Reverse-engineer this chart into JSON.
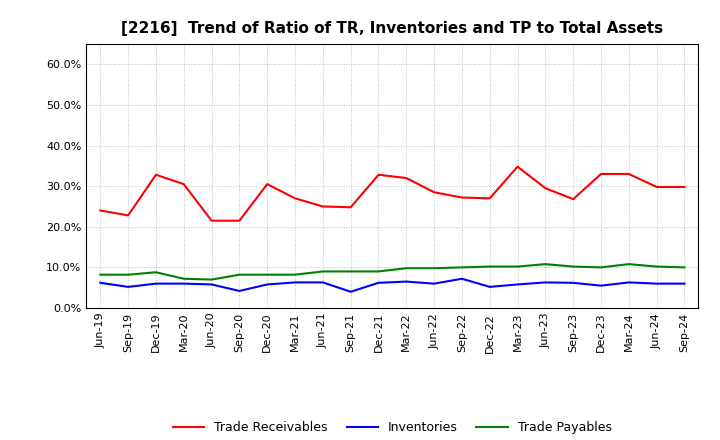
{
  "title": "[2216]  Trend of Ratio of TR, Inventories and TP to Total Assets",
  "x_labels": [
    "Jun-19",
    "Sep-19",
    "Dec-19",
    "Mar-20",
    "Jun-20",
    "Sep-20",
    "Dec-20",
    "Mar-21",
    "Jun-21",
    "Sep-21",
    "Dec-21",
    "Mar-22",
    "Jun-22",
    "Sep-22",
    "Dec-22",
    "Mar-23",
    "Jun-23",
    "Sep-23",
    "Dec-23",
    "Mar-24",
    "Jun-24",
    "Sep-24"
  ],
  "trade_receivables": [
    0.24,
    0.228,
    0.328,
    0.305,
    0.215,
    0.215,
    0.305,
    0.27,
    0.25,
    0.248,
    0.328,
    0.32,
    0.285,
    0.272,
    0.27,
    0.348,
    0.295,
    0.268,
    0.33,
    0.33,
    0.298,
    0.298
  ],
  "inventories": [
    0.062,
    0.052,
    0.06,
    0.06,
    0.058,
    0.042,
    0.058,
    0.063,
    0.063,
    0.04,
    0.062,
    0.065,
    0.06,
    0.072,
    0.052,
    0.058,
    0.063,
    0.062,
    0.055,
    0.063,
    0.06,
    0.06
  ],
  "trade_payables": [
    0.082,
    0.082,
    0.088,
    0.072,
    0.07,
    0.082,
    0.082,
    0.082,
    0.09,
    0.09,
    0.09,
    0.098,
    0.098,
    0.1,
    0.102,
    0.102,
    0.108,
    0.102,
    0.1,
    0.108,
    0.102,
    0.1
  ],
  "tr_color": "#FF0000",
  "inv_color": "#0000FF",
  "tp_color": "#008000",
  "background_color": "#FFFFFF",
  "plot_bg_color": "#FFFFFF",
  "grid_color": "#AAAAAA",
  "spine_color": "#000000",
  "ylim": [
    0.0,
    0.65
  ],
  "yticks": [
    0.0,
    0.1,
    0.2,
    0.3,
    0.4,
    0.5,
    0.6
  ],
  "legend_labels": [
    "Trade Receivables",
    "Inventories",
    "Trade Payables"
  ],
  "title_fontsize": 11,
  "tick_fontsize": 8,
  "legend_fontsize": 9
}
